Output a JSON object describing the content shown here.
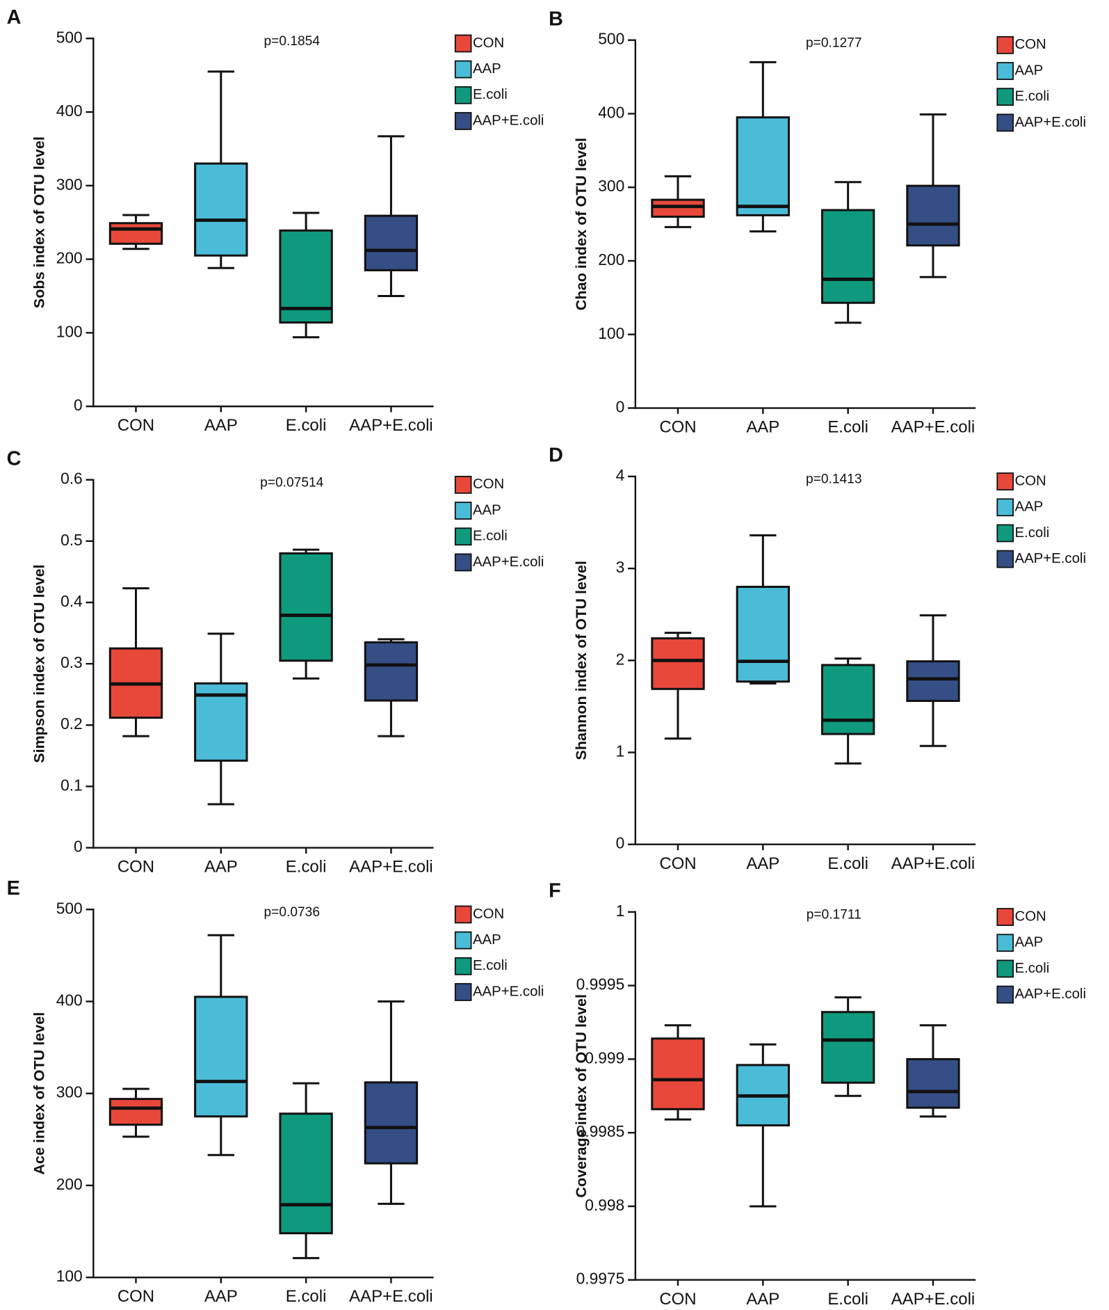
{
  "chart_data": [
    {
      "type": "box",
      "panel": "A",
      "annotation": "p=0.1854",
      "y_label": "Sobs index of OTU level",
      "ylim": [
        0,
        500
      ],
      "yticks": [
        0,
        100,
        200,
        300,
        400,
        500
      ],
      "series": [
        {
          "name": "CON",
          "color": "#e8483a",
          "min": 214,
          "q1": 221,
          "median": 241,
          "q3": 249,
          "max": 260
        },
        {
          "name": "AAP",
          "color": "#4bbcd8",
          "min": 188,
          "q1": 205,
          "median": 253,
          "q3": 330,
          "max": 455
        },
        {
          "name": "E.coli",
          "color": "#0f9a7e",
          "min": 94,
          "q1": 114,
          "median": 133,
          "q3": 239,
          "max": 263
        },
        {
          "name": "AAP+E.coli",
          "color": "#354e86",
          "min": 150,
          "q1": 185,
          "median": 212,
          "q3": 259,
          "max": 367
        }
      ]
    },
    {
      "type": "box",
      "panel": "B",
      "annotation": "p=0.1277",
      "y_label": "Chao index of OTU level",
      "ylim": [
        0,
        500
      ],
      "yticks": [
        0,
        100,
        200,
        300,
        400,
        500
      ],
      "series": [
        {
          "name": "CON",
          "color": "#e8483a",
          "min": 246,
          "q1": 260,
          "median": 274,
          "q3": 283,
          "max": 315
        },
        {
          "name": "AAP",
          "color": "#4bbcd8",
          "min": 240,
          "q1": 262,
          "median": 274,
          "q3": 395,
          "max": 470
        },
        {
          "name": "E.coli",
          "color": "#0f9a7e",
          "min": 116,
          "q1": 143,
          "median": 175,
          "q3": 269,
          "max": 307
        },
        {
          "name": "AAP+E.coli",
          "color": "#354e86",
          "min": 178,
          "q1": 221,
          "median": 250,
          "q3": 302,
          "max": 399
        }
      ]
    },
    {
      "type": "box",
      "panel": "C",
      "annotation": "p=0.07514",
      "y_label": "Simpson index of OTU level",
      "ylim": [
        0,
        0.6
      ],
      "yticks": [
        0,
        0.1,
        0.2,
        0.3,
        0.4,
        0.5,
        0.6
      ],
      "series": [
        {
          "name": "CON",
          "color": "#e8483a",
          "min": 0.182,
          "q1": 0.212,
          "median": 0.267,
          "q3": 0.325,
          "max": 0.423
        },
        {
          "name": "AAP",
          "color": "#4bbcd8",
          "min": 0.071,
          "q1": 0.142,
          "median": 0.249,
          "q3": 0.268,
          "max": 0.349
        },
        {
          "name": "E.coli",
          "color": "#0f9a7e",
          "min": 0.276,
          "q1": 0.305,
          "median": 0.379,
          "q3": 0.48,
          "max": 0.486
        },
        {
          "name": "AAP+E.coli",
          "color": "#354e86",
          "min": 0.182,
          "q1": 0.24,
          "median": 0.298,
          "q3": 0.335,
          "max": 0.34
        }
      ]
    },
    {
      "type": "box",
      "panel": "D",
      "annotation": "p=0.1413",
      "y_label": "Shannon index of OTU level",
      "ylim": [
        0,
        4
      ],
      "yticks": [
        0,
        1,
        2,
        3,
        4
      ],
      "series": [
        {
          "name": "CON",
          "color": "#e8483a",
          "min": 1.15,
          "q1": 1.69,
          "median": 2.0,
          "q3": 2.24,
          "max": 2.3
        },
        {
          "name": "AAP",
          "color": "#4bbcd8",
          "min": 1.75,
          "q1": 1.77,
          "median": 1.99,
          "q3": 2.8,
          "max": 3.36
        },
        {
          "name": "E.coli",
          "color": "#0f9a7e",
          "min": 0.88,
          "q1": 1.2,
          "median": 1.35,
          "q3": 1.95,
          "max": 2.02
        },
        {
          "name": "AAP+E.coli",
          "color": "#354e86",
          "min": 1.07,
          "q1": 1.56,
          "median": 1.8,
          "q3": 1.99,
          "max": 2.49
        }
      ]
    },
    {
      "type": "box",
      "panel": "E",
      "annotation": "p=0.0736",
      "y_label": "Ace index of OTU level",
      "ylim": [
        100,
        500
      ],
      "yticks": [
        100,
        200,
        300,
        400,
        500
      ],
      "series": [
        {
          "name": "CON",
          "color": "#e8483a",
          "min": 253,
          "q1": 266,
          "median": 284,
          "q3": 294,
          "max": 305
        },
        {
          "name": "AAP",
          "color": "#4bbcd8",
          "min": 233,
          "q1": 275,
          "median": 313,
          "q3": 405,
          "max": 472
        },
        {
          "name": "E.coli",
          "color": "#0f9a7e",
          "min": 121,
          "q1": 148,
          "median": 179,
          "q3": 278,
          "max": 311
        },
        {
          "name": "AAP+E.coli",
          "color": "#354e86",
          "min": 180,
          "q1": 224,
          "median": 263,
          "q3": 312,
          "max": 400
        }
      ]
    },
    {
      "type": "box",
      "panel": "F",
      "annotation": "p=0.1711",
      "y_label": "Coverage index of OTU level",
      "ylim": [
        0.9975,
        1
      ],
      "yticks": [
        0.9975,
        0.998,
        0.9985,
        0.999,
        0.9995,
        1
      ],
      "series": [
        {
          "name": "CON",
          "color": "#e8483a",
          "min": 0.99859,
          "q1": 0.99866,
          "median": 0.99886,
          "q3": 0.99914,
          "max": 0.99923
        },
        {
          "name": "AAP",
          "color": "#4bbcd8",
          "min": 0.998,
          "q1": 0.99855,
          "median": 0.99875,
          "q3": 0.99896,
          "max": 0.9991
        },
        {
          "name": "E.coli",
          "color": "#0f9a7e",
          "min": 0.99875,
          "q1": 0.99884,
          "median": 0.99913,
          "q3": 0.99932,
          "max": 0.99942
        },
        {
          "name": "AAP+E.coli",
          "color": "#354e86",
          "min": 0.99861,
          "q1": 0.99867,
          "median": 0.99878,
          "q3": 0.999,
          "max": 0.99923
        }
      ]
    }
  ]
}
